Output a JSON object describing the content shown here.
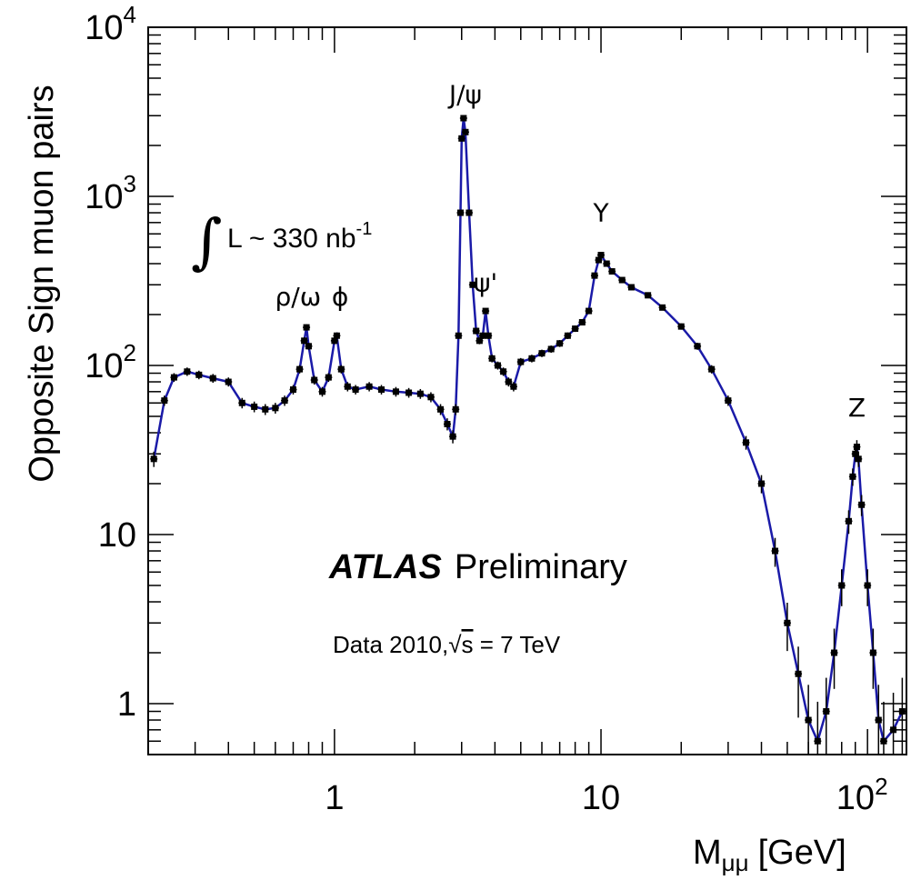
{
  "chart_data": {
    "type": "line",
    "xlabel_main": "M",
    "xlabel_sub": "μμ",
    "xlabel_unit": "[GeV]",
    "ylabel": "Opposite Sign muon pairs",
    "x_scale": "log",
    "y_scale": "log",
    "xlim": [
      0.2,
      140
    ],
    "ylim": [
      0.5,
      10000
    ],
    "x_ticks": [
      {
        "value": 1,
        "base": "1",
        "exp": ""
      },
      {
        "value": 10,
        "base": "10",
        "exp": ""
      },
      {
        "value": 100,
        "base": "10",
        "exp": "2"
      }
    ],
    "y_ticks": [
      {
        "value": 1,
        "base": "1",
        "exp": ""
      },
      {
        "value": 10,
        "base": "10",
        "exp": ""
      },
      {
        "value": 100,
        "base": "10",
        "exp": "2"
      },
      {
        "value": 1000,
        "base": "10",
        "exp": "3"
      },
      {
        "value": 10000,
        "base": "10",
        "exp": "4"
      }
    ],
    "series": [
      {
        "color": "#1a1aa8",
        "points": [
          [
            0.21,
            28
          ],
          [
            0.23,
            62
          ],
          [
            0.25,
            85
          ],
          [
            0.28,
            92
          ],
          [
            0.31,
            88
          ],
          [
            0.35,
            84
          ],
          [
            0.4,
            80
          ],
          [
            0.45,
            60
          ],
          [
            0.5,
            57
          ],
          [
            0.55,
            55
          ],
          [
            0.6,
            56
          ],
          [
            0.65,
            62
          ],
          [
            0.7,
            72
          ],
          [
            0.74,
            95
          ],
          [
            0.77,
            140
          ],
          [
            0.785,
            168
          ],
          [
            0.8,
            130
          ],
          [
            0.84,
            82
          ],
          [
            0.9,
            70
          ],
          [
            0.95,
            85
          ],
          [
            1.0,
            140
          ],
          [
            1.02,
            150
          ],
          [
            1.06,
            95
          ],
          [
            1.12,
            75
          ],
          [
            1.2,
            72
          ],
          [
            1.35,
            75
          ],
          [
            1.5,
            72
          ],
          [
            1.7,
            70
          ],
          [
            1.9,
            69
          ],
          [
            2.1,
            68
          ],
          [
            2.3,
            65
          ],
          [
            2.5,
            55
          ],
          [
            2.65,
            45
          ],
          [
            2.78,
            38
          ],
          [
            2.85,
            55
          ],
          [
            2.92,
            150
          ],
          [
            2.97,
            800
          ],
          [
            3.0,
            2200
          ],
          [
            3.05,
            2900
          ],
          [
            3.1,
            2400
          ],
          [
            3.2,
            800
          ],
          [
            3.3,
            300
          ],
          [
            3.4,
            160
          ],
          [
            3.5,
            140
          ],
          [
            3.6,
            150
          ],
          [
            3.69,
            210
          ],
          [
            3.78,
            150
          ],
          [
            3.9,
            110
          ],
          [
            4.1,
            100
          ],
          [
            4.3,
            92
          ],
          [
            4.5,
            80
          ],
          [
            4.7,
            75
          ],
          [
            5.0,
            105
          ],
          [
            5.5,
            110
          ],
          [
            6.0,
            118
          ],
          [
            6.5,
            125
          ],
          [
            7.0,
            135
          ],
          [
            7.5,
            150
          ],
          [
            8.0,
            165
          ],
          [
            8.5,
            180
          ],
          [
            9.0,
            210
          ],
          [
            9.46,
            340
          ],
          [
            9.8,
            420
          ],
          [
            10.0,
            450
          ],
          [
            10.5,
            400
          ],
          [
            11,
            360
          ],
          [
            12,
            320
          ],
          [
            13,
            290
          ],
          [
            15,
            260
          ],
          [
            17,
            220
          ],
          [
            20,
            170
          ],
          [
            23,
            130
          ],
          [
            26,
            95
          ],
          [
            30,
            62
          ],
          [
            35,
            35
          ],
          [
            40,
            20
          ],
          [
            45,
            8
          ],
          [
            50,
            3
          ],
          [
            55,
            1.5
          ],
          [
            60,
            0.8
          ],
          [
            65,
            0.6
          ],
          [
            70,
            0.9
          ],
          [
            75,
            2.0
          ],
          [
            80,
            5
          ],
          [
            85,
            12
          ],
          [
            88,
            22
          ],
          [
            90,
            30
          ],
          [
            91.2,
            33
          ],
          [
            92.5,
            28
          ],
          [
            95,
            15
          ],
          [
            100,
            5
          ],
          [
            105,
            2
          ],
          [
            110,
            0.8
          ],
          [
            115,
            0.6
          ],
          [
            125,
            0.7
          ],
          [
            135,
            0.9
          ]
        ]
      }
    ],
    "peak_labels": [
      {
        "text": "J/ψ",
        "x": 3.1,
        "y": 3000
      },
      {
        "text": "Υ",
        "x": 10.0,
        "y": 600
      },
      {
        "text": "ψ'",
        "x": 3.69,
        "y": 230
      },
      {
        "text": "ρ/ω",
        "x": 0.73,
        "y": 190
      },
      {
        "text": "ϕ",
        "x": 1.05,
        "y": 190
      },
      {
        "text": "Z",
        "x": 91.2,
        "y": 42
      }
    ],
    "annotations": {
      "integral_symbol": "∫",
      "lumi_text": "L ~ 330 nb",
      "lumi_exp": "-1",
      "experiment": "ATLAS",
      "status": "Preliminary",
      "data_prefix": "Data 2010,",
      "sqrt_symbol": "√",
      "sqrt_arg": "s",
      "energy_suffix": " = 7 TeV"
    },
    "colors": {
      "curve": "#1a1aa8",
      "points": "#000000",
      "frame": "#000000"
    }
  }
}
